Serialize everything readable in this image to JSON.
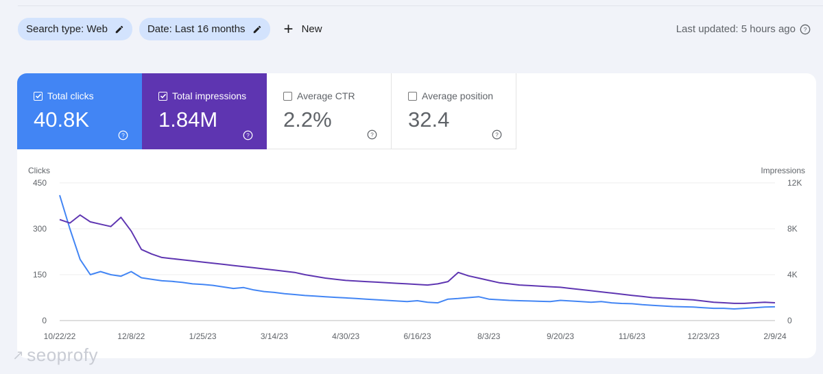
{
  "filters": {
    "search_type": "Search type: Web",
    "date": "Date: Last 16 months",
    "new_label": "New",
    "last_updated": "Last updated: 5 hours ago"
  },
  "metrics": {
    "total_clicks": {
      "label": "Total clicks",
      "value": "40.8K",
      "checked": true,
      "color": "#4285f4"
    },
    "total_impressions": {
      "label": "Total impressions",
      "value": "1.84M",
      "checked": true,
      "color": "#5e35b1"
    },
    "average_ctr": {
      "label": "Average CTR",
      "value": "2.2%",
      "checked": false
    },
    "average_position": {
      "label": "Average position",
      "value": "32.4",
      "checked": false
    }
  },
  "watermark": "seoprofy",
  "chart_data": {
    "type": "line",
    "ylabel_left": "Clicks",
    "ylabel_right": "Impressions",
    "y_left_ticks": [
      "450",
      "300",
      "150",
      "0"
    ],
    "y_right_ticks": [
      "12K",
      "8K",
      "4K",
      "0"
    ],
    "ylim_left": [
      0,
      450
    ],
    "ylim_right": [
      0,
      12000
    ],
    "x_tick_labels": [
      "10/22/22",
      "12/8/22",
      "1/25/23",
      "3/14/23",
      "4/30/23",
      "6/16/23",
      "8/3/23",
      "9/20/23",
      "11/6/23",
      "12/23/23",
      "2/9/24"
    ],
    "grid": true,
    "x": [
      "10/22/22",
      "10/29/22",
      "11/5/22",
      "11/12/22",
      "11/19/22",
      "11/26/22",
      "12/3/22",
      "12/10/22",
      "12/17/22",
      "12/24/22",
      "12/31/22",
      "1/7/23",
      "1/14/23",
      "1/21/23",
      "1/28/23",
      "2/4/23",
      "2/11/23",
      "2/18/23",
      "2/25/23",
      "3/4/23",
      "3/11/23",
      "3/18/23",
      "3/25/23",
      "4/1/23",
      "4/8/23",
      "4/15/23",
      "4/22/23",
      "4/29/23",
      "5/6/23",
      "5/13/23",
      "5/20/23",
      "5/27/23",
      "6/3/23",
      "6/10/23",
      "6/17/23",
      "6/24/23",
      "7/1/23",
      "7/8/23",
      "7/15/23",
      "7/22/23",
      "7/29/23",
      "8/5/23",
      "8/12/23",
      "8/19/23",
      "8/26/23",
      "9/2/23",
      "9/9/23",
      "9/16/23",
      "9/23/23",
      "9/30/23",
      "10/7/23",
      "10/14/23",
      "10/21/23",
      "10/28/23",
      "11/4/23",
      "11/11/23",
      "11/18/23",
      "11/25/23",
      "12/2/23",
      "12/9/23",
      "12/16/23",
      "12/23/23",
      "12/30/23",
      "1/6/24",
      "1/13/24",
      "1/20/24",
      "1/27/24",
      "2/3/24",
      "2/10/24",
      "2/17/24",
      "2/24/24"
    ],
    "series": [
      {
        "name": "Clicks",
        "axis": "left",
        "color": "#4285f4",
        "values": [
          410,
          300,
          200,
          150,
          160,
          150,
          145,
          160,
          140,
          135,
          130,
          128,
          125,
          120,
          118,
          115,
          110,
          105,
          108,
          100,
          95,
          92,
          88,
          85,
          82,
          80,
          78,
          76,
          74,
          72,
          70,
          68,
          66,
          64,
          62,
          65,
          60,
          58,
          70,
          72,
          75,
          78,
          70,
          68,
          66,
          65,
          64,
          63,
          62,
          66,
          64,
          62,
          60,
          62,
          58,
          56,
          55,
          52,
          50,
          48,
          46,
          45,
          44,
          42,
          40,
          40,
          38,
          40,
          42,
          44,
          45
        ]
      },
      {
        "name": "Impressions",
        "axis": "right",
        "color": "#5e35b1",
        "values": [
          8800,
          8500,
          9200,
          8600,
          8400,
          8200,
          9000,
          7800,
          6200,
          5800,
          5500,
          5400,
          5300,
          5200,
          5100,
          5000,
          4900,
          4800,
          4700,
          4600,
          4500,
          4400,
          4300,
          4200,
          4000,
          3850,
          3700,
          3600,
          3500,
          3450,
          3400,
          3350,
          3300,
          3250,
          3200,
          3150,
          3100,
          3200,
          3400,
          4200,
          3900,
          3700,
          3500,
          3300,
          3200,
          3100,
          3050,
          3000,
          2950,
          2900,
          2800,
          2700,
          2600,
          2500,
          2400,
          2300,
          2200,
          2100,
          2000,
          1950,
          1900,
          1850,
          1800,
          1700,
          1600,
          1550,
          1500,
          1500,
          1550,
          1600,
          1550
        ]
      }
    ]
  }
}
